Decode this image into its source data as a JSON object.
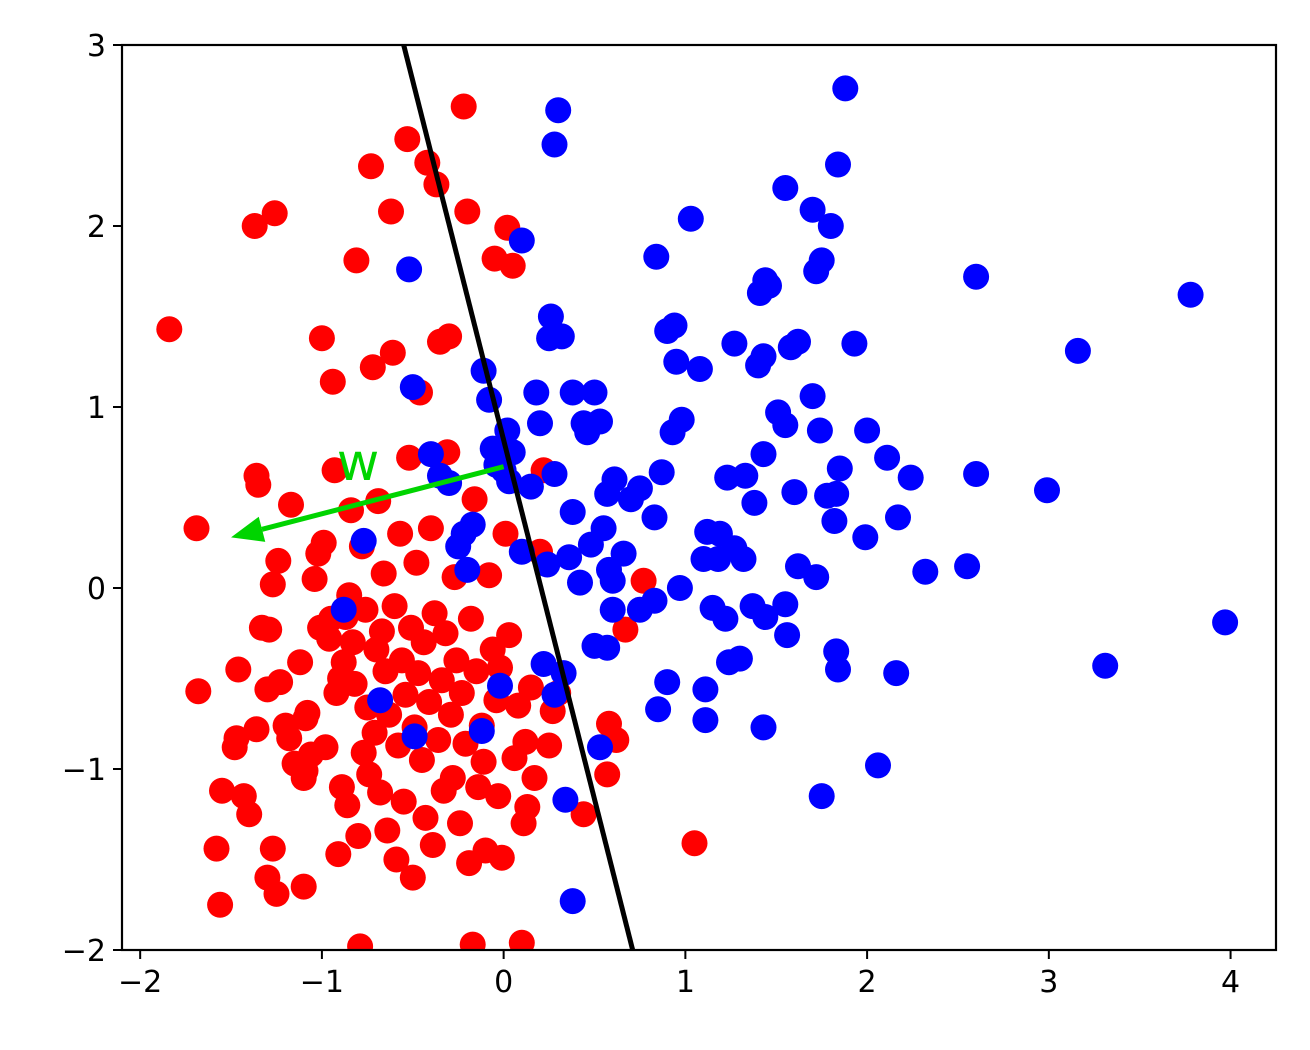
{
  "chart_data": {
    "type": "scatter",
    "title": "",
    "xlabel": "",
    "ylabel": "",
    "xlim": [
      -2.1,
      4.25
    ],
    "ylim": [
      -2,
      3
    ],
    "xticks": [
      -2,
      -1,
      0,
      1,
      2,
      3,
      4
    ],
    "yticks": [
      -2,
      -1,
      0,
      1,
      2,
      3
    ],
    "xtick_labels": [
      "−2",
      "−1",
      "0",
      "1",
      "2",
      "3",
      "4"
    ],
    "ytick_labels": [
      "−2",
      "−1",
      "0",
      "1",
      "2",
      "3"
    ],
    "grid": false,
    "colors": {
      "red_class": "#ff0000",
      "blue_class": "#0000ff",
      "boundary": "#000000",
      "w_vector": "#00d400"
    },
    "series": [
      {
        "color": "#ff0000",
        "points": [
          [
            -1.84,
            1.43
          ],
          [
            -1.69,
            0.33
          ],
          [
            -1.68,
            -0.57
          ],
          [
            -1.58,
            -1.44
          ],
          [
            -1.56,
            -1.75
          ],
          [
            -1.55,
            -1.12
          ],
          [
            -1.48,
            -0.88
          ],
          [
            -1.47,
            -0.83
          ],
          [
            -1.46,
            -0.45
          ],
          [
            -1.43,
            -1.15
          ],
          [
            -1.4,
            -1.25
          ],
          [
            -1.37,
            2.0
          ],
          [
            -1.36,
            -0.78
          ],
          [
            -1.36,
            0.62
          ],
          [
            -1.35,
            0.57
          ],
          [
            -1.33,
            -0.22
          ],
          [
            -1.3,
            -1.6
          ],
          [
            -1.3,
            -0.56
          ],
          [
            -1.29,
            -0.23
          ],
          [
            -1.27,
            0.02
          ],
          [
            -1.27,
            -1.44
          ],
          [
            -1.26,
            2.07
          ],
          [
            -1.25,
            -1.69
          ],
          [
            -1.24,
            0.15
          ],
          [
            -1.23,
            -0.52
          ],
          [
            -1.2,
            -0.76
          ],
          [
            -1.18,
            -0.83
          ],
          [
            -1.17,
            0.46
          ],
          [
            -1.15,
            -0.97
          ],
          [
            -1.12,
            -0.41
          ],
          [
            -1.1,
            -1.05
          ],
          [
            -1.09,
            -1.01
          ],
          [
            -1.1,
            -1.65
          ],
          [
            -1.09,
            -0.72
          ],
          [
            -1.08,
            -0.69
          ],
          [
            -1.06,
            -0.92
          ],
          [
            -1.04,
            0.05
          ],
          [
            -1.02,
            0.19
          ],
          [
            -1.01,
            -0.22
          ],
          [
            -1.0,
            1.38
          ],
          [
            -0.99,
            0.25
          ],
          [
            -0.98,
            -0.88
          ],
          [
            -0.96,
            -0.28
          ],
          [
            -0.95,
            -0.17
          ],
          [
            -0.94,
            1.14
          ],
          [
            -0.93,
            0.65
          ],
          [
            -0.92,
            -0.58
          ],
          [
            -0.91,
            -1.47
          ],
          [
            -0.9,
            -0.5
          ],
          [
            -0.89,
            -1.1
          ],
          [
            -0.88,
            -0.41
          ],
          [
            -0.87,
            -0.16
          ],
          [
            -0.86,
            -1.2
          ],
          [
            -0.85,
            -0.04
          ],
          [
            -0.84,
            0.43
          ],
          [
            -0.83,
            -0.3
          ],
          [
            -0.82,
            -0.53
          ],
          [
            -0.81,
            1.81
          ],
          [
            -0.8,
            -1.37
          ],
          [
            -0.79,
            -1.98
          ],
          [
            -0.78,
            0.23
          ],
          [
            -0.77,
            -0.91
          ],
          [
            -0.76,
            -0.12
          ],
          [
            -0.75,
            -0.66
          ],
          [
            -0.74,
            -1.03
          ],
          [
            -0.73,
            2.33
          ],
          [
            -0.72,
            1.22
          ],
          [
            -0.71,
            -0.8
          ],
          [
            -0.7,
            -0.34
          ],
          [
            -0.69,
            0.48
          ],
          [
            -0.68,
            -1.13
          ],
          [
            -0.67,
            -0.24
          ],
          [
            -0.66,
            0.08
          ],
          [
            -0.65,
            -0.46
          ],
          [
            -0.64,
            -1.34
          ],
          [
            -0.63,
            -0.7
          ],
          [
            -0.62,
            2.08
          ],
          [
            -0.61,
            1.3
          ],
          [
            -0.6,
            -0.1
          ],
          [
            -0.59,
            -1.5
          ],
          [
            -0.58,
            -0.87
          ],
          [
            -0.57,
            0.3
          ],
          [
            -0.56,
            -0.4
          ],
          [
            -0.55,
            -1.18
          ],
          [
            -0.54,
            -0.59
          ],
          [
            -0.53,
            2.48
          ],
          [
            -0.52,
            0.72
          ],
          [
            -0.51,
            -0.22
          ],
          [
            -0.5,
            -1.6
          ],
          [
            -0.49,
            -0.77
          ],
          [
            -0.48,
            0.14
          ],
          [
            -0.47,
            -0.47
          ],
          [
            -0.46,
            1.08
          ],
          [
            -0.45,
            -0.95
          ],
          [
            -0.44,
            -0.3
          ],
          [
            -0.43,
            -1.27
          ],
          [
            -0.42,
            2.35
          ],
          [
            -0.41,
            -0.63
          ],
          [
            -0.4,
            0.33
          ],
          [
            -0.39,
            -1.42
          ],
          [
            -0.38,
            -0.14
          ],
          [
            -0.37,
            2.23
          ],
          [
            -0.36,
            -0.84
          ],
          [
            -0.35,
            1.36
          ],
          [
            -0.34,
            -0.51
          ],
          [
            -0.33,
            -1.12
          ],
          [
            -0.32,
            -0.25
          ],
          [
            -0.31,
            0.75
          ],
          [
            -0.3,
            1.39
          ],
          [
            -0.29,
            -0.7
          ],
          [
            -0.28,
            -1.05
          ],
          [
            -0.27,
            0.06
          ],
          [
            -0.26,
            -0.4
          ],
          [
            -0.24,
            -1.3
          ],
          [
            -0.23,
            -0.58
          ],
          [
            -0.22,
            2.66
          ],
          [
            -0.21,
            -0.86
          ],
          [
            -0.2,
            2.08
          ],
          [
            -0.19,
            -1.52
          ],
          [
            -0.18,
            -0.17
          ],
          [
            -0.17,
            -1.97
          ],
          [
            -0.16,
            0.49
          ],
          [
            -0.15,
            -0.46
          ],
          [
            -0.14,
            -1.1
          ],
          [
            -0.12,
            -0.76
          ],
          [
            -0.11,
            -0.96
          ],
          [
            -0.1,
            -1.45
          ],
          [
            -0.08,
            0.07
          ],
          [
            -0.06,
            -0.34
          ],
          [
            -0.05,
            1.82
          ],
          [
            -0.04,
            -0.62
          ],
          [
            -0.03,
            -1.15
          ],
          [
            -0.02,
            -0.44
          ],
          [
            -0.01,
            -1.49
          ],
          [
            0.01,
            0.3
          ],
          [
            0.02,
            1.99
          ],
          [
            0.03,
            -0.26
          ],
          [
            0.05,
            1.78
          ],
          [
            0.06,
            -0.94
          ],
          [
            0.08,
            -0.65
          ],
          [
            0.1,
            -1.96
          ],
          [
            0.11,
            -1.3
          ],
          [
            0.12,
            -0.85
          ],
          [
            0.13,
            -1.21
          ],
          [
            0.15,
            -0.55
          ],
          [
            0.17,
            -1.05
          ],
          [
            0.2,
            0.2
          ],
          [
            0.22,
            0.65
          ],
          [
            0.25,
            -0.87
          ],
          [
            0.27,
            -0.68
          ],
          [
            0.3,
            -0.58
          ],
          [
            0.44,
            -1.25
          ],
          [
            0.57,
            -1.03
          ],
          [
            0.58,
            -0.75
          ],
          [
            0.62,
            -0.84
          ],
          [
            0.67,
            -0.23
          ],
          [
            0.77,
            0.04
          ],
          [
            1.05,
            -1.41
          ]
        ]
      },
      {
        "color": "#0000ff",
        "points": [
          [
            -0.88,
            -0.12
          ],
          [
            -0.77,
            0.26
          ],
          [
            -0.68,
            -0.62
          ],
          [
            -0.52,
            1.76
          ],
          [
            -0.5,
            1.11
          ],
          [
            -0.49,
            -0.82
          ],
          [
            -0.4,
            0.74
          ],
          [
            -0.35,
            0.62
          ],
          [
            -0.3,
            0.58
          ],
          [
            -0.25,
            0.23
          ],
          [
            -0.22,
            0.3
          ],
          [
            -0.2,
            0.1
          ],
          [
            -0.17,
            0.35
          ],
          [
            -0.12,
            -0.79
          ],
          [
            -0.11,
            1.2
          ],
          [
            -0.08,
            1.04
          ],
          [
            -0.06,
            0.77
          ],
          [
            -0.04,
            0.68
          ],
          [
            -0.02,
            -0.54
          ],
          [
            0.0,
            0.65
          ],
          [
            0.02,
            0.87
          ],
          [
            0.03,
            0.59
          ],
          [
            0.05,
            0.75
          ],
          [
            0.1,
            0.2
          ],
          [
            0.1,
            1.92
          ],
          [
            0.15,
            0.56
          ],
          [
            0.18,
            1.08
          ],
          [
            0.2,
            0.91
          ],
          [
            0.22,
            -0.42
          ],
          [
            0.24,
            0.13
          ],
          [
            0.25,
            1.38
          ],
          [
            0.26,
            1.5
          ],
          [
            0.28,
            -0.59
          ],
          [
            0.28,
            0.63
          ],
          [
            0.28,
            2.45
          ],
          [
            0.3,
            2.64
          ],
          [
            0.32,
            1.39
          ],
          [
            0.33,
            -0.47
          ],
          [
            0.34,
            -1.17
          ],
          [
            0.36,
            0.17
          ],
          [
            0.38,
            0.42
          ],
          [
            0.38,
            -1.73
          ],
          [
            0.38,
            1.08
          ],
          [
            0.42,
            0.03
          ],
          [
            0.44,
            0.91
          ],
          [
            0.46,
            0.86
          ],
          [
            0.48,
            0.24
          ],
          [
            0.5,
            1.08
          ],
          [
            0.53,
            0.92
          ],
          [
            0.5,
            -0.32
          ],
          [
            0.53,
            -0.88
          ],
          [
            0.55,
            0.33
          ],
          [
            0.57,
            0.52
          ],
          [
            0.57,
            -0.33
          ],
          [
            0.58,
            0.1
          ],
          [
            0.6,
            -0.12
          ],
          [
            0.6,
            0.04
          ],
          [
            0.61,
            0.6
          ],
          [
            0.66,
            0.19
          ],
          [
            0.7,
            0.49
          ],
          [
            0.75,
            0.55
          ],
          [
            0.75,
            -0.12
          ],
          [
            0.83,
            0.39
          ],
          [
            0.83,
            -0.07
          ],
          [
            0.84,
            1.83
          ],
          [
            0.85,
            -0.67
          ],
          [
            0.87,
            0.64
          ],
          [
            0.9,
            1.42
          ],
          [
            0.9,
            -0.52
          ],
          [
            0.93,
            0.86
          ],
          [
            0.94,
            1.45
          ],
          [
            0.95,
            1.25
          ],
          [
            0.97,
            0.0
          ],
          [
            0.98,
            0.93
          ],
          [
            1.03,
            2.04
          ],
          [
            1.08,
            1.21
          ],
          [
            1.1,
            0.16
          ],
          [
            1.11,
            -0.56
          ],
          [
            1.11,
            -0.73
          ],
          [
            1.12,
            0.31
          ],
          [
            1.15,
            -0.11
          ],
          [
            1.18,
            0.16
          ],
          [
            1.19,
            0.3
          ],
          [
            1.22,
            -0.17
          ],
          [
            1.23,
            0.61
          ],
          [
            1.24,
            -0.41
          ],
          [
            1.27,
            1.35
          ],
          [
            1.27,
            0.22
          ],
          [
            1.3,
            -0.39
          ],
          [
            1.32,
            0.16
          ],
          [
            1.33,
            0.62
          ],
          [
            1.37,
            -0.1
          ],
          [
            1.38,
            0.47
          ],
          [
            1.4,
            1.23
          ],
          [
            1.41,
            1.63
          ],
          [
            1.43,
            -0.77
          ],
          [
            1.43,
            1.28
          ],
          [
            1.44,
            -0.16
          ],
          [
            1.43,
            0.74
          ],
          [
            1.44,
            1.7
          ],
          [
            1.46,
            1.67
          ],
          [
            1.51,
            0.97
          ],
          [
            1.55,
            0.9
          ],
          [
            1.55,
            2.21
          ],
          [
            1.55,
            -0.09
          ],
          [
            1.56,
            -0.26
          ],
          [
            1.58,
            1.33
          ],
          [
            1.6,
            0.53
          ],
          [
            1.62,
            0.12
          ],
          [
            1.62,
            1.36
          ],
          [
            1.7,
            1.06
          ],
          [
            1.7,
            2.09
          ],
          [
            1.72,
            1.75
          ],
          [
            1.72,
            0.06
          ],
          [
            1.74,
            0.87
          ],
          [
            1.75,
            1.81
          ],
          [
            1.75,
            -1.15
          ],
          [
            1.78,
            0.51
          ],
          [
            1.8,
            2.0
          ],
          [
            1.82,
            0.37
          ],
          [
            1.83,
            0.52
          ],
          [
            1.83,
            -0.35
          ],
          [
            1.84,
            -0.45
          ],
          [
            1.84,
            2.34
          ],
          [
            1.85,
            0.66
          ],
          [
            1.88,
            2.76
          ],
          [
            1.93,
            1.35
          ],
          [
            1.99,
            0.28
          ],
          [
            2.0,
            0.87
          ],
          [
            2.06,
            -0.98
          ],
          [
            2.11,
            0.72
          ],
          [
            2.16,
            -0.47
          ],
          [
            2.17,
            0.39
          ],
          [
            2.24,
            0.61
          ],
          [
            2.32,
            0.09
          ],
          [
            2.55,
            0.12
          ],
          [
            2.6,
            0.63
          ],
          [
            2.6,
            1.72
          ],
          [
            2.99,
            0.54
          ],
          [
            3.16,
            1.31
          ],
          [
            3.31,
            -0.43
          ],
          [
            3.78,
            1.62
          ],
          [
            3.97,
            -0.19
          ]
        ]
      }
    ],
    "boundary_line": {
      "x": [
        -0.55,
        0.71
      ],
      "y": [
        3,
        -2
      ]
    },
    "w_vector": {
      "label": "w",
      "from": [
        0.0,
        0.67
      ],
      "to": [
        -1.5,
        0.28
      ]
    }
  }
}
